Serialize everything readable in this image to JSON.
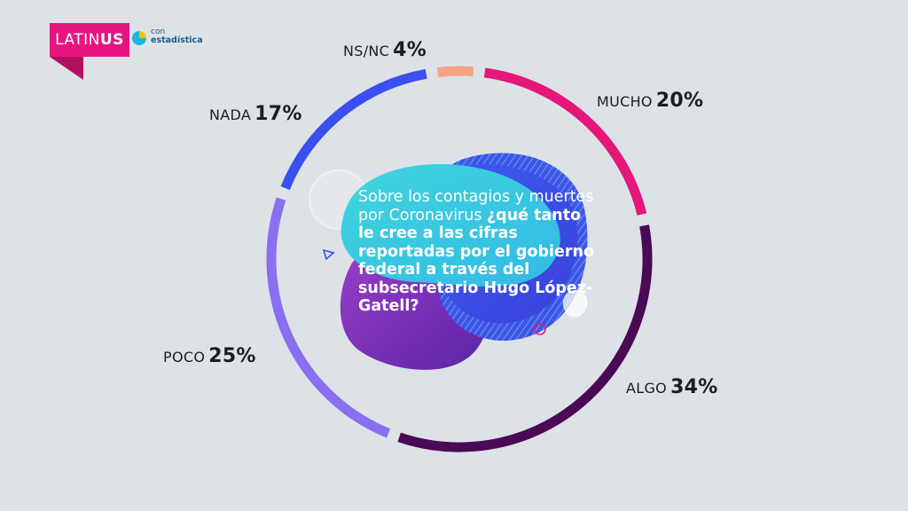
{
  "brand": {
    "logo_light": "LATIN",
    "logo_bold": "US",
    "logo_color": "#e6157f",
    "partner_line1": "con",
    "partner_line2": "estadística"
  },
  "question": {
    "intro": "Sobre los contagios y muertes por Coronavirus",
    "bold": "¿qué tanto le cree a las cifras reportadas por el gobierno federal a través del subsecretario Hugo López-Gatell?"
  },
  "chart_data": {
    "type": "pie",
    "style": "donut-ring",
    "categories": [
      "MUCHO",
      "ALGO",
      "POCO",
      "NADA",
      "NS/NC"
    ],
    "values": [
      20,
      34,
      25,
      17,
      4
    ],
    "labels": [
      "20%",
      "34%",
      "25%",
      "17%",
      "4%"
    ],
    "colors": [
      "#e5177a",
      "#4b0a55",
      "#8a6ff0",
      "#3a4ff0",
      "#f7a184"
    ],
    "legend": "labels-outside-ring"
  }
}
